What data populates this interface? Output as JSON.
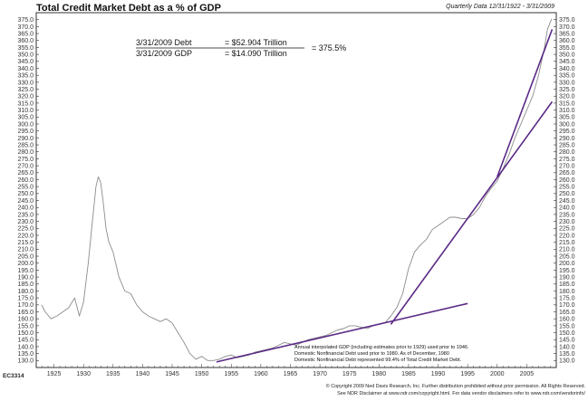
{
  "header": {
    "title": "Total Credit Market Debt as a % of GDP",
    "data_range": "Quarterly Data 12/31/1922 - 3/31/2009"
  },
  "annotation": {
    "debt_label": "3/31/2009 Debt",
    "debt_value": "= $52.904 Trillion",
    "gdp_label": "3/31/2009 GDP",
    "gdp_value": "= $14.090 Trillion",
    "ratio": "= 375.5%"
  },
  "notes": [
    "Annual interpolated GDP (including estimates prior to 1929) used prior to 1946.",
    "Domestic Nonfinancial Debt used prior to 1980. As of December, 1980",
    "Domestic Nonfinancial Debt represented 99.4% of Total Credit Market Debt."
  ],
  "footer": {
    "code": "EC3314",
    "copyright": "© Copyright 2009 Ned Davis Research, Inc. Further distribution prohibited without prior permission. All Rights Reserved.",
    "disclaimer": "See NDR Disclaimer at www.ndr.com/copyright.html. For data vendor disclaimers refer to www.ndr.com/vendorinfo/"
  },
  "chart_data": {
    "type": "line",
    "title": "Total Credit Market Debt as a % of GDP",
    "xlabel": "",
    "ylabel": "",
    "xlim": [
      1922,
      2010
    ],
    "ylim": [
      125,
      380
    ],
    "x_ticks": [
      1925,
      1930,
      1935,
      1940,
      1945,
      1950,
      1955,
      1960,
      1965,
      1970,
      1975,
      1980,
      1985,
      1990,
      1995,
      2000,
      2005
    ],
    "y_ticks": [
      130,
      135,
      140,
      145,
      150,
      155,
      160,
      165,
      170,
      175,
      180,
      185,
      190,
      195,
      200,
      205,
      210,
      215,
      220,
      225,
      230,
      235,
      240,
      245,
      250,
      255,
      260,
      265,
      270,
      275,
      280,
      285,
      290,
      295,
      300,
      305,
      310,
      315,
      320,
      325,
      330,
      335,
      340,
      345,
      350,
      355,
      360,
      365,
      370,
      375
    ],
    "grid": false,
    "series": [
      {
        "color": "#8c8c8c",
        "x": [
          1922.9,
          1923.5,
          1924.5,
          1925.5,
          1926.5,
          1927.5,
          1928.5,
          1929.3,
          1930,
          1930.8,
          1931.5,
          1932.1,
          1932.5,
          1932.9,
          1933.3,
          1933.8,
          1934.3,
          1935,
          1936,
          1937,
          1938,
          1939,
          1940,
          1941,
          1942,
          1943,
          1944,
          1945,
          1946,
          1947,
          1948,
          1949,
          1950,
          1951,
          1952,
          1953,
          1954,
          1955,
          1956,
          1957,
          1958,
          1959,
          1960,
          1961,
          1962,
          1963,
          1964,
          1965,
          1966,
          1967,
          1968,
          1969,
          1970,
          1971,
          1972,
          1973,
          1974,
          1975,
          1976,
          1977,
          1978,
          1979,
          1980,
          1981,
          1982,
          1983,
          1984,
          1985,
          1986,
          1987,
          1988,
          1989,
          1990,
          1991,
          1992,
          1993,
          1994,
          1995,
          1996,
          1997,
          1998,
          1999,
          2000,
          2001,
          2002,
          2003,
          2004,
          2005,
          2006,
          2007,
          2008,
          2008.5,
          2009.2
        ],
        "values": [
          170,
          165,
          160,
          162,
          165,
          168,
          175,
          162,
          172,
          200,
          230,
          255,
          262,
          258,
          245,
          225,
          215,
          208,
          190,
          180,
          178,
          170,
          165,
          162,
          160,
          158,
          160,
          157,
          150,
          143,
          135,
          131,
          133,
          130,
          130,
          131,
          133,
          134,
          132,
          133,
          134,
          136,
          137,
          138,
          139,
          141,
          143,
          142,
          141,
          143,
          145,
          146,
          147,
          148,
          150,
          152,
          153,
          155,
          155,
          154,
          153,
          155,
          156,
          157,
          162,
          168,
          178,
          196,
          208,
          213,
          217,
          224,
          227,
          230,
          233,
          233,
          232,
          232,
          235,
          240,
          248,
          254,
          259,
          268,
          278,
          290,
          300,
          310,
          320,
          335,
          355,
          368,
          375.5
        ]
      }
    ],
    "trendlines": [
      {
        "x": [
          1952.5,
          1995
        ],
        "values": [
          129,
          171
        ],
        "color": "#5b2a86"
      },
      {
        "x": [
          1982,
          2009.3
        ],
        "values": [
          156,
          316
        ],
        "color": "#5b2a86"
      },
      {
        "x": [
          2000,
          2009.3
        ],
        "values": [
          262,
          368
        ],
        "color": "#5b2a86"
      }
    ]
  }
}
